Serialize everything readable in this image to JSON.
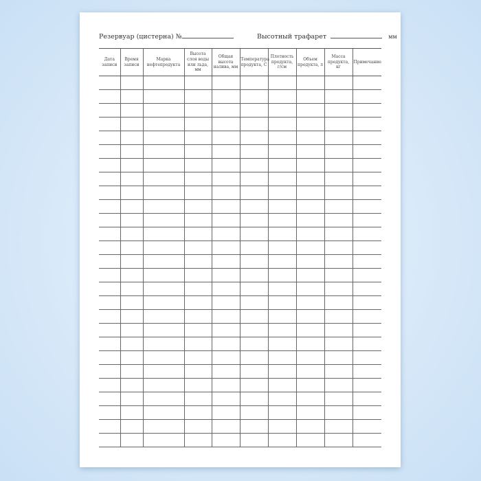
{
  "header": {
    "reservoir_label": "Резервуар (цистерна) №",
    "stencil_label": "Высотный трафарет",
    "stencil_unit": "мм"
  },
  "table": {
    "columns": [
      "Дата записи",
      "Время записи",
      "Марка нефтепродукта",
      "Высота слоя воды или льда, мм",
      "Общая высота налива, мм",
      "Температура продукта, С",
      "Плотность продукта, г/см",
      "Объем продукта, л",
      "Масса продукта, кг",
      "Примечание"
    ]
  }
}
